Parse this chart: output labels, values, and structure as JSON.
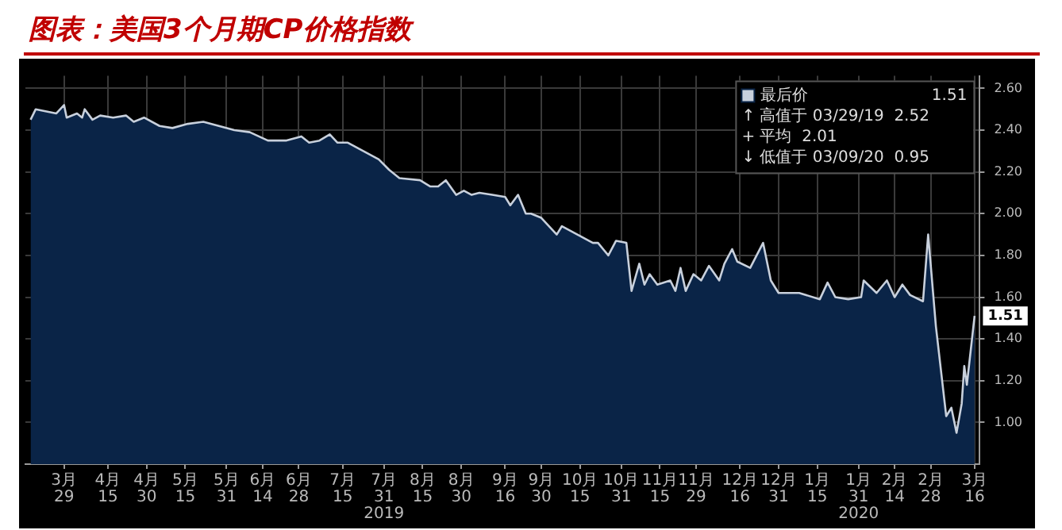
{
  "chart_data": {
    "type": "area",
    "title": "图表：美国3个月期CP价格指数",
    "x": [
      "2019-03-16",
      "2019-03-18",
      "2019-03-26",
      "2019-03-29",
      "2019-03-30",
      "2019-04-03",
      "2019-04-05",
      "2019-04-06",
      "2019-04-09",
      "2019-04-12",
      "2019-04-17",
      "2019-04-22",
      "2019-04-25",
      "2019-04-29",
      "2019-05-05",
      "2019-05-10",
      "2019-05-16",
      "2019-05-22",
      "2019-05-28",
      "2019-06-03",
      "2019-06-09",
      "2019-06-16",
      "2019-06-23",
      "2019-06-29",
      "2019-07-02",
      "2019-07-06",
      "2019-07-10",
      "2019-07-13",
      "2019-07-17",
      "2019-07-23",
      "2019-07-29",
      "2019-08-02",
      "2019-08-06",
      "2019-08-14",
      "2019-08-18",
      "2019-08-21",
      "2019-08-24",
      "2019-08-28",
      "2019-08-31",
      "2019-09-03",
      "2019-09-06",
      "2019-09-11",
      "2019-09-16",
      "2019-09-18",
      "2019-09-21",
      "2019-09-24",
      "2019-09-26",
      "2019-09-30",
      "2019-10-06",
      "2019-10-08",
      "2019-10-14",
      "2019-10-20",
      "2019-10-22",
      "2019-10-26",
      "2019-10-29",
      "2019-11-02",
      "2019-11-04",
      "2019-11-07",
      "2019-11-09",
      "2019-11-11",
      "2019-11-14",
      "2019-11-19",
      "2019-11-21",
      "2019-11-23",
      "2019-11-25",
      "2019-11-28",
      "2019-12-01",
      "2019-12-04",
      "2019-12-08",
      "2019-12-10",
      "2019-12-13",
      "2019-12-15",
      "2019-12-20",
      "2019-12-25",
      "2019-12-28",
      "2019-12-31",
      "2020-01-08",
      "2020-01-16",
      "2020-01-19",
      "2020-01-22",
      "2020-01-27",
      "2020-02-01",
      "2020-02-02",
      "2020-02-07",
      "2020-02-11",
      "2020-02-14",
      "2020-02-17",
      "2020-02-20",
      "2020-02-25",
      "2020-02-27",
      "2020-03-01",
      "2020-03-05",
      "2020-03-07",
      "2020-03-09",
      "2020-03-10",
      "2020-03-11",
      "2020-03-12",
      "2020-03-13",
      "2020-03-16"
    ],
    "series": [
      {
        "name": "最后价",
        "color": "#0a2447",
        "values": [
          2.45,
          2.5,
          2.48,
          2.52,
          2.46,
          2.48,
          2.46,
          2.5,
          2.45,
          2.47,
          2.46,
          2.47,
          2.44,
          2.46,
          2.42,
          2.41,
          2.43,
          2.44,
          2.42,
          2.4,
          2.39,
          2.35,
          2.35,
          2.37,
          2.34,
          2.35,
          2.38,
          2.34,
          2.34,
          2.3,
          2.26,
          2.21,
          2.17,
          2.16,
          2.13,
          2.13,
          2.16,
          2.09,
          2.11,
          2.09,
          2.1,
          2.09,
          2.08,
          2.04,
          2.09,
          2.0,
          2.0,
          1.98,
          1.9,
          1.94,
          1.9,
          1.86,
          1.86,
          1.8,
          1.87,
          1.86,
          1.63,
          1.76,
          1.66,
          1.71,
          1.66,
          1.68,
          1.63,
          1.74,
          1.63,
          1.71,
          1.68,
          1.75,
          1.68,
          1.76,
          1.83,
          1.77,
          1.74,
          1.86,
          1.68,
          1.62,
          1.62,
          1.59,
          1.67,
          1.6,
          1.59,
          1.6,
          1.68,
          1.62,
          1.68,
          1.6,
          1.66,
          1.61,
          1.58,
          1.9,
          1.46,
          1.03,
          1.07,
          0.95,
          1.02,
          1.09,
          1.27,
          1.18,
          1.51
        ]
      }
    ],
    "xlim": [
      "2019-03-14",
      "2020-03-18"
    ],
    "xticks": [
      {
        "value": "2019-03-29",
        "label": "3月29"
      },
      {
        "value": "2019-04-15",
        "label": "4月15"
      },
      {
        "value": "2019-04-30",
        "label": "4月30"
      },
      {
        "value": "2019-05-15",
        "label": "5月15"
      },
      {
        "value": "2019-05-31",
        "label": "5月31"
      },
      {
        "value": "2019-06-14",
        "label": "6月14"
      },
      {
        "value": "2019-06-28",
        "label": "6月28"
      },
      {
        "value": "2019-07-15",
        "label": "7月15"
      },
      {
        "value": "2019-07-31",
        "label": "7月31\n2019"
      },
      {
        "value": "2019-08-15",
        "label": "8月15"
      },
      {
        "value": "2019-08-30",
        "label": "8月30"
      },
      {
        "value": "2019-09-16",
        "label": "9月16"
      },
      {
        "value": "2019-09-30",
        "label": "9月30"
      },
      {
        "value": "2019-10-15",
        "label": "10月15"
      },
      {
        "value": "2019-10-31",
        "label": "10月31"
      },
      {
        "value": "2019-11-15",
        "label": "11月15"
      },
      {
        "value": "2019-11-29",
        "label": "11月29"
      },
      {
        "value": "2019-12-16",
        "label": "12月16"
      },
      {
        "value": "2019-12-31",
        "label": "12月31"
      },
      {
        "value": "2020-01-15",
        "label": "1月15"
      },
      {
        "value": "2020-01-31",
        "label": "1月31\n2020"
      },
      {
        "value": "2020-02-14",
        "label": "2月14"
      },
      {
        "value": "2020-02-28",
        "label": "2月28"
      },
      {
        "value": "2020-03-16",
        "label": "3月16"
      }
    ],
    "ylim": [
      0.8,
      2.66
    ],
    "yticks": [
      {
        "value": 1.0,
        "label": "1.00"
      },
      {
        "value": 1.2,
        "label": "1.20"
      },
      {
        "value": 1.4,
        "label": "1.40"
      },
      {
        "value": 1.6,
        "label": "1.60"
      },
      {
        "value": 1.8,
        "label": "1.80"
      },
      {
        "value": 2.0,
        "label": "2.00"
      },
      {
        "value": 2.2,
        "label": "2.20"
      },
      {
        "value": 2.4,
        "label": "2.40"
      },
      {
        "value": 2.6,
        "label": "2.60"
      }
    ],
    "grid": true,
    "legend": "top right",
    "annotations": [
      {
        "text": "1.51",
        "x": "2020-03-16",
        "y": 1.51
      },
      "↑ 高值于 03/29/19  2.52",
      "+ 平均  2.01",
      "↓ 低值于 03/09/20  0.95"
    ]
  }
}
